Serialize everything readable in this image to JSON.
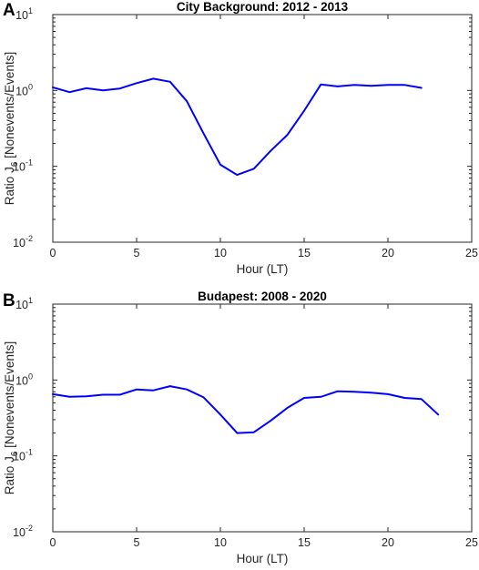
{
  "chart_data": [
    {
      "type": "line",
      "panel": "A",
      "title": "City Background: 2012 - 2013",
      "xlabel": "Hour (LT)",
      "ylabel_prefix": "Ratio J",
      "ylabel_sub": "6",
      "ylabel_suffix": " [Nonevents/Events]",
      "xlim": [
        0,
        25
      ],
      "ylim": [
        0.01,
        10
      ],
      "yscale": "log",
      "grid": false,
      "xticks": [
        0,
        5,
        10,
        15,
        20,
        25
      ],
      "yticks": [
        {
          "value": 0.01,
          "base": "10",
          "exp": "-2"
        },
        {
          "value": 0.1,
          "base": "10",
          "exp": "-1"
        },
        {
          "value": 1,
          "base": "10",
          "exp": "0"
        },
        {
          "value": 10,
          "base": "10",
          "exp": "1"
        }
      ],
      "series": [
        {
          "color": "#0000ff",
          "x": [
            0,
            1,
            2,
            3,
            4,
            5,
            6,
            7,
            8,
            9,
            10,
            11,
            12,
            13,
            14,
            15,
            16,
            17,
            18,
            19,
            20,
            21,
            22
          ],
          "y": [
            1.1,
            0.95,
            1.07,
            1.0,
            1.06,
            1.25,
            1.43,
            1.3,
            0.72,
            0.27,
            0.105,
            0.077,
            0.093,
            0.16,
            0.26,
            0.54,
            1.2,
            1.13,
            1.18,
            1.15,
            1.18,
            1.18,
            1.08
          ]
        }
      ]
    },
    {
      "type": "line",
      "panel": "B",
      "title": "Budapest: 2008 - 2020",
      "xlabel": "Hour (LT)",
      "ylabel_prefix": "Ratio J",
      "ylabel_sub": "6",
      "ylabel_suffix": " [Nonevents/Events]",
      "xlim": [
        0,
        25
      ],
      "ylim": [
        0.01,
        10
      ],
      "yscale": "log",
      "grid": false,
      "xticks": [
        0,
        5,
        10,
        15,
        20,
        25
      ],
      "yticks": [
        {
          "value": 0.01,
          "base": "10",
          "exp": "-2"
        },
        {
          "value": 0.1,
          "base": "10",
          "exp": "-1"
        },
        {
          "value": 1,
          "base": "10",
          "exp": "0"
        },
        {
          "value": 10,
          "base": "10",
          "exp": "1"
        }
      ],
      "series": [
        {
          "color": "#0000ff",
          "x": [
            0,
            1,
            2,
            3,
            4,
            5,
            6,
            7,
            8,
            9,
            10,
            11,
            12,
            13,
            14,
            15,
            16,
            17,
            18,
            19,
            20,
            21,
            22,
            23
          ],
          "y": [
            0.65,
            0.6,
            0.61,
            0.64,
            0.64,
            0.75,
            0.73,
            0.83,
            0.75,
            0.59,
            0.35,
            0.2,
            0.205,
            0.29,
            0.43,
            0.58,
            0.6,
            0.71,
            0.7,
            0.68,
            0.65,
            0.58,
            0.56,
            0.35
          ]
        }
      ]
    }
  ]
}
